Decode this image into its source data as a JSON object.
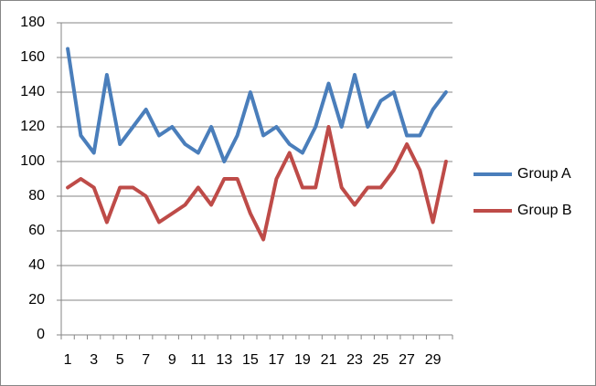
{
  "chart_data": {
    "type": "line",
    "categories": [
      1,
      null,
      3,
      null,
      5,
      null,
      7,
      null,
      9,
      null,
      11,
      null,
      13,
      null,
      15,
      null,
      17,
      null,
      19,
      null,
      21,
      null,
      23,
      null,
      25,
      null,
      27,
      null,
      29,
      null
    ],
    "series": [
      {
        "name": "Group A",
        "color": "#4a7ebb",
        "values": [
          165,
          115,
          105,
          150,
          110,
          120,
          130,
          115,
          120,
          110,
          105,
          120,
          100,
          115,
          140,
          115,
          120,
          110,
          105,
          120,
          145,
          120,
          150,
          120,
          135,
          140,
          115,
          115,
          130,
          140
        ]
      },
      {
        "name": "Group B",
        "color": "#be4b48",
        "values": [
          85,
          90,
          85,
          65,
          85,
          85,
          80,
          65,
          70,
          75,
          85,
          75,
          90,
          90,
          70,
          55,
          90,
          105,
          85,
          85,
          120,
          85,
          75,
          85,
          85,
          95,
          110,
          95,
          65,
          100
        ]
      }
    ],
    "ylim": [
      0,
      180
    ],
    "yticks": [
      0,
      20,
      40,
      60,
      80,
      100,
      120,
      140,
      160,
      180
    ],
    "grid": true,
    "legend": "right"
  }
}
